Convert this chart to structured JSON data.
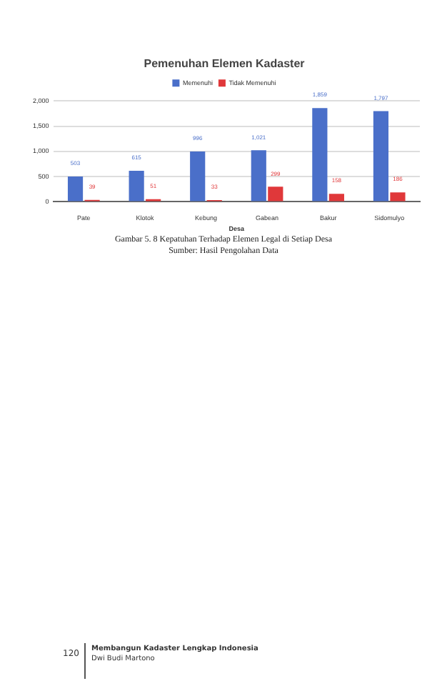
{
  "chart_data": {
    "type": "bar",
    "title": "Pemenuhan Elemen Kadaster",
    "xlabel": "Desa",
    "categories": [
      "Pate",
      "Klotok",
      "Kebung",
      "Gabean",
      "Bakur",
      "Sidomulyo"
    ],
    "series": [
      {
        "name": "Memenuhi",
        "color": "#4a6fc9",
        "values": [
          503,
          615,
          996,
          1021,
          1859,
          1797
        ],
        "value_labels": [
          "503",
          "615",
          "996",
          "1,021",
          "1,859",
          "1,797"
        ]
      },
      {
        "name": "Tidak Memenuhi",
        "color": "#e0383a",
        "values": [
          39,
          51,
          33,
          299,
          158,
          186
        ],
        "value_labels": [
          "39",
          "51",
          "33",
          "299",
          "158",
          "186"
        ]
      }
    ],
    "ylim": [
      0,
      2000
    ],
    "yticks": [
      {
        "value": 0,
        "label": "0"
      },
      {
        "value": 500,
        "label": "500"
      },
      {
        "value": 1000,
        "label": "1,000"
      },
      {
        "value": 1500,
        "label": "1,500"
      },
      {
        "value": 2000,
        "label": "2,000"
      }
    ],
    "grid": "y",
    "legend": "top",
    "annotations": [
      "Gambar 5. 8 Kepatuhan Terhadap Elemen Legal di Setiap Desa",
      "Sumber: Hasil Pengolahan Data",
      "120",
      "Membangun Kadaster Lengkap Indonesia",
      "Dwi Budi Martono"
    ]
  }
}
